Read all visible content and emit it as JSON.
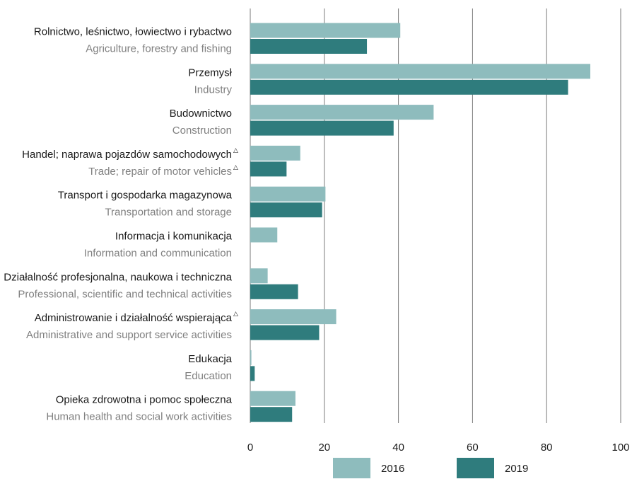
{
  "chart_data": {
    "type": "bar",
    "orientation": "horizontal",
    "categories": [
      {
        "pl": "Rolnictwo, leśnictwo, łowiectwo i rybactwo",
        "en": "Agriculture, forestry and fishing",
        "mark_pl": false,
        "mark_en": false
      },
      {
        "pl": "Przemysł",
        "en": "Industry",
        "mark_pl": false,
        "mark_en": false
      },
      {
        "pl": "Budownictwo",
        "en": "Construction",
        "mark_pl": false,
        "mark_en": false
      },
      {
        "pl": "Handel; naprawa pojazdów samochodowych",
        "en": "Trade; repair of motor vehicles",
        "mark_pl": true,
        "mark_en": true
      },
      {
        "pl": "Transport i gospodarka magazynowa",
        "en": "Transportation and storage",
        "mark_pl": false,
        "mark_en": false
      },
      {
        "pl": "Informacja i komunikacja",
        "en": "Information and communication",
        "mark_pl": false,
        "mark_en": false
      },
      {
        "pl": "Działalność profesjonalna, naukowa i techniczna",
        "en": "Professional, scientific and technical activities",
        "mark_pl": false,
        "mark_en": false
      },
      {
        "pl": "Administrowanie i działalność wspierająca",
        "en": "Administrative and support service activities",
        "mark_pl": true,
        "mark_en": false
      },
      {
        "pl": "Edukacja",
        "en": "Education",
        "mark_pl": false,
        "mark_en": false
      },
      {
        "pl": "Opieka zdrowotna i pomoc społeczna",
        "en": "Human health and social work activities",
        "mark_pl": false,
        "mark_en": false
      }
    ],
    "mark_symbol": "△",
    "series": [
      {
        "name": "2016",
        "color": "#8ebcbd",
        "values": [
          40.5,
          91.8,
          49.5,
          13.5,
          20.3,
          7.3,
          4.7,
          23.2,
          0.3,
          12.2
        ]
      },
      {
        "name": "2019",
        "color": "#2f7c7d",
        "values": [
          31.5,
          85.8,
          38.7,
          9.8,
          19.4,
          0,
          12.9,
          18.6,
          1.2,
          11.3
        ]
      }
    ],
    "xlim": [
      0,
      100
    ],
    "xticks": [
      "0",
      "20",
      "40",
      "60",
      "80",
      "100"
    ],
    "grid": true,
    "legend_position": "bottom-right",
    "gridline_color": "#7a7a7a"
  }
}
